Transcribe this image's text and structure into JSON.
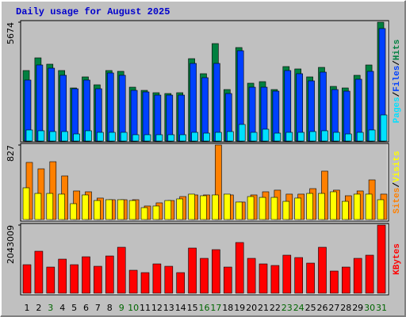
{
  "chart_data": [
    {
      "type": "bar",
      "title": "Daily usage for August 2025",
      "categories": [
        "1",
        "2",
        "3",
        "4",
        "5",
        "6",
        "7",
        "8",
        "9",
        "10",
        "11",
        "12",
        "13",
        "14",
        "15",
        "16",
        "17",
        "18",
        "19",
        "20",
        "21",
        "22",
        "23",
        "24",
        "25",
        "26",
        "27",
        "28",
        "29",
        "30",
        "31"
      ],
      "category_colors": [
        "#000000",
        "#000000",
        "#006600",
        "#000000",
        "#000000",
        "#000000",
        "#000000",
        "#000000",
        "#006600",
        "#006600",
        "#000000",
        "#000000",
        "#000000",
        "#000000",
        "#000000",
        "#006600",
        "#006600",
        "#000000",
        "#000000",
        "#000000",
        "#000000",
        "#000000",
        "#006600",
        "#006600",
        "#000000",
        "#000000",
        "#000000",
        "#000000",
        "#000000",
        "#006600",
        "#006600"
      ],
      "legend_separator": "/",
      "ylim": [
        0,
        5674
      ],
      "yticks": [
        5674
      ],
      "series": [
        {
          "name": "Pages",
          "color": "#00e0ff",
          "values": [
            530,
            492,
            454,
            454,
            340,
            492,
            416,
            416,
            416,
            303,
            303,
            303,
            303,
            303,
            416,
            378,
            416,
            454,
            794,
            416,
            567,
            378,
            416,
            416,
            454,
            492,
            416,
            340,
            416,
            530,
            1248
          ]
        },
        {
          "name": "Files",
          "color": "#0040ff",
          "values": [
            2913,
            3632,
            3480,
            3140,
            2497,
            2913,
            2497,
            3253,
            3140,
            2421,
            2345,
            2194,
            2194,
            2194,
            3707,
            3026,
            3707,
            2270,
            4313,
            2572,
            2572,
            2383,
            3367,
            3216,
            2875,
            3291,
            2459,
            2383,
            2951,
            3329,
            5372
          ]
        },
        {
          "name": "Hits",
          "color": "#008040",
          "values": [
            3367,
            3972,
            3670,
            3367,
            2535,
            3064,
            2686,
            3367,
            3329,
            2572,
            2421,
            2308,
            2270,
            2308,
            3934,
            3216,
            4653,
            2459,
            4464,
            2762,
            2837,
            2459,
            3556,
            3443,
            3064,
            3518,
            2610,
            2535,
            3140,
            3632,
            5674
          ]
        }
      ]
    },
    {
      "type": "bar",
      "ylim": [
        0,
        827
      ],
      "yticks": [
        827
      ],
      "series": [
        {
          "name": "Sites",
          "color": "#ff8000",
          "values": [
            634,
            563,
            642,
            484,
            317,
            308,
            238,
            220,
            220,
            220,
            150,
            185,
            211,
            255,
            273,
            273,
            827,
            273,
            194,
            273,
            308,
            326,
            282,
            282,
            343,
            537,
            326,
            264,
            317,
            440,
            282
          ]
        },
        {
          "name": "Visits",
          "color": "#ffff00",
          "values": [
            352,
            290,
            290,
            282,
            176,
            273,
            211,
            220,
            220,
            211,
            132,
            150,
            211,
            229,
            282,
            264,
            273,
            282,
            194,
            255,
            246,
            246,
            202,
            238,
            290,
            290,
            308,
            202,
            282,
            282,
            220
          ]
        }
      ]
    },
    {
      "type": "bar",
      "ylim": [
        0,
        2043009
      ],
      "yticks": [
        2043009
      ],
      "series": [
        {
          "name": "KBytes",
          "color": "#ff0000",
          "values": [
            855216,
            1259068,
            783948,
            1021508,
            855216,
            1092776,
            807704,
            1116532,
            1377848,
            688924,
            617656,
            878972,
            807704,
            617656,
            1354092,
            1045264,
            1306580,
            783948,
            1520384,
            1045264,
            878972,
            831460,
            1140288,
            1069020,
            902728,
            1377848,
            665168,
            783948,
            1045264,
            1140288,
            2043009
          ]
        }
      ]
    }
  ]
}
